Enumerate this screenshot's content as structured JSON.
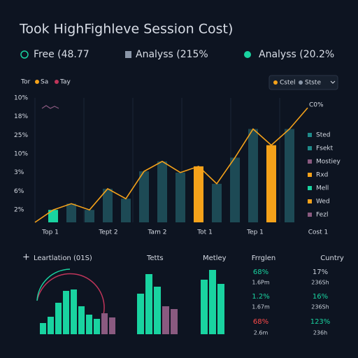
{
  "header": {
    "title": "Took HighFighleve Session Cost)"
  },
  "kpis": [
    "Free (48.77",
    "Analyss (215%",
    "Analyss (20.2%"
  ],
  "legend_top": [
    {
      "label": "Tor",
      "color": "#f5a21a"
    },
    {
      "label": "Sa",
      "color": "#f5a21a"
    },
    {
      "label": "Tay",
      "color": "#c0355a"
    }
  ],
  "dropdown": [
    "Cstel",
    "Stste"
  ],
  "chart_data": [
    {
      "type": "bar_line",
      "yaxis_labels": [
        "10%",
        "18%",
        "25%",
        "10%",
        "3%",
        "6%",
        "2%"
      ],
      "categories": [
        "Top 1",
        "Tept 2",
        "Tam 2",
        "Tot 1",
        "Tep 1",
        "Cost 1"
      ],
      "ylim": [
        0,
        100
      ],
      "end_label": "C0%",
      "line": {
        "color": "#f5a21a",
        "values": [
          0,
          10,
          15,
          10,
          27,
          19,
          41,
          49,
          40,
          45,
          31,
          52,
          75,
          62,
          75,
          92
        ]
      },
      "bars": {
        "values": [
          10,
          15,
          10,
          27,
          19,
          41,
          49,
          40,
          45,
          31,
          52,
          75,
          62,
          75
        ],
        "colors": [
          "#19d3a0",
          "#1d4a55",
          "#1d4a55",
          "#1d4a55",
          "#1d4a55",
          "#1d4a55",
          "#1d4a55",
          "#1d4a55",
          "#f5a21a",
          "#1d4a55",
          "#1d4a55",
          "#1d4a55",
          "#f5a21a",
          "#1d4a55"
        ]
      },
      "side_legend": [
        {
          "label": "Sted",
          "color": "#1f8a8a"
        },
        {
          "label": "Fsekt",
          "color": "#1f8a8a"
        },
        {
          "label": "Mostiey",
          "color": "#8a5a80"
        },
        {
          "label": "Rxd",
          "color": "#f5a21a"
        },
        {
          "label": "Mell",
          "color": "#19d3a0"
        },
        {
          "label": "Wed",
          "color": "#f5a21a"
        },
        {
          "label": "Fezl",
          "color": "#8a5a80"
        }
      ]
    },
    {
      "type": "bar",
      "title": "Leartlation (01S)",
      "ylim": [
        0,
        100
      ],
      "values": [
        16,
        25,
        45,
        62,
        64,
        40,
        28,
        22,
        30,
        24
      ],
      "colors": [
        "#19d3a0",
        "#19d3a0",
        "#19d3a0",
        "#19d3a0",
        "#19d3a0",
        "#19d3a0",
        "#19d3a0",
        "#19d3a0",
        "#8a5a80",
        "#8a5a80"
      ]
    },
    {
      "type": "bar",
      "title": "Tetts",
      "ylim": [
        0,
        100
      ],
      "values": [
        58,
        86,
        68,
        40,
        36
      ],
      "colors": [
        "#19d3a0",
        "#19d3a0",
        "#19d3a0",
        "#8a5a80",
        "#8a5a80"
      ]
    },
    {
      "type": "bar",
      "title": "Metley",
      "ylim": [
        0,
        100
      ],
      "values": [
        78,
        92,
        72
      ],
      "colors": [
        "#19d3a0",
        "#19d3a0",
        "#19d3a0"
      ]
    }
  ],
  "stats": {
    "headers": [
      "Frrglen",
      "Cuntry"
    ],
    "rows": [
      [
        "68%",
        "17%"
      ],
      [
        "1.6Pm",
        "236Sh"
      ],
      [
        "1.2%",
        "16%"
      ],
      [
        "1.67m",
        "236Sh"
      ],
      [
        "68%",
        "123%"
      ],
      [
        "2.6m",
        "236h"
      ]
    ]
  }
}
